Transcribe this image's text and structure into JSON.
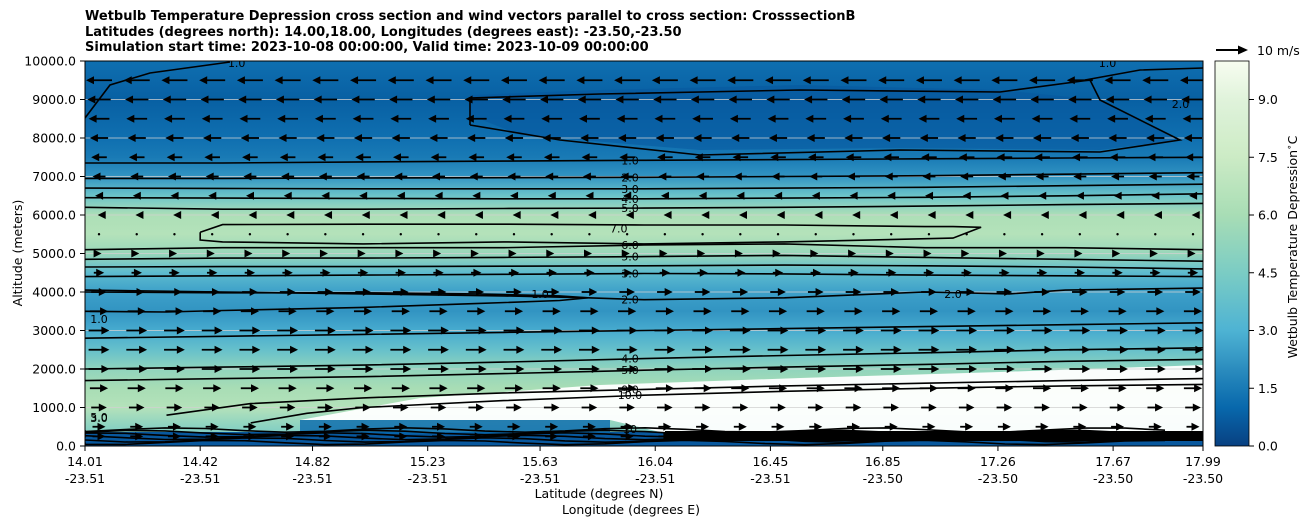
{
  "header": {
    "line1": "Wetbulb Temperature Depression cross section and wind vectors parallel to cross section: CrosssectionB",
    "line2": "Latitudes (degrees north): 14.00,18.00, Longitudes (degrees east): -23.50,-23.50",
    "line3": "Simulation start time: 2023-10-08 00:00:00, Valid time: 2023-10-09 00:00:00"
  },
  "chart_data": {
    "type": "heatmap",
    "ylabel": "Altitude (meters)",
    "xlabel": "Latitude (degrees N)",
    "xlabel2": "Longitude (degrees E)",
    "colorbar_label": "Wetbulb Temperature Depression $^\\circ$C",
    "quiver_key": "10 m/s",
    "ylim": [
      0,
      10000
    ],
    "y_ticks": [
      "0.0",
      "1000.0",
      "2000.0",
      "3000.0",
      "4000.0",
      "5000.0",
      "6000.0",
      "7000.0",
      "8000.0",
      "9000.0",
      "10000.0"
    ],
    "x_ticks": [
      {
        "lat": "14.01",
        "lon": "-23.51"
      },
      {
        "lat": "14.42",
        "lon": "-23.51"
      },
      {
        "lat": "14.82",
        "lon": "-23.51"
      },
      {
        "lat": "15.23",
        "lon": "-23.51"
      },
      {
        "lat": "15.63",
        "lon": "-23.51"
      },
      {
        "lat": "16.04",
        "lon": "-23.51"
      },
      {
        "lat": "16.45",
        "lon": "-23.51"
      },
      {
        "lat": "16.85",
        "lon": "-23.50"
      },
      {
        "lat": "17.26",
        "lon": "-23.50"
      },
      {
        "lat": "17.67",
        "lon": "-23.50"
      },
      {
        "lat": "17.99",
        "lon": "-23.50"
      }
    ],
    "colorbar_ticks": [
      "0.0",
      "1.5",
      "3.0",
      "4.5",
      "6.0",
      "7.5",
      "9.0"
    ],
    "colorbar_range": [
      0,
      10
    ],
    "grid_horizontal": true,
    "depression_profile": [
      {
        "z": 0,
        "v": 2.5
      },
      {
        "z": 300,
        "v": 4.5
      },
      {
        "z": 1000,
        "v": 6.5
      },
      {
        "z": 1500,
        "v": 6.0
      },
      {
        "z": 2000,
        "v": 5.2
      },
      {
        "z": 2500,
        "v": 3.8
      },
      {
        "z": 3000,
        "v": 2.8
      },
      {
        "z": 3500,
        "v": 2.2
      },
      {
        "z": 4000,
        "v": 2.5
      },
      {
        "z": 4500,
        "v": 3.5
      },
      {
        "z": 5000,
        "v": 5.5
      },
      {
        "z": 5500,
        "v": 6.5
      },
      {
        "z": 6000,
        "v": 6.2
      },
      {
        "z": 6500,
        "v": 4.0
      },
      {
        "z": 7000,
        "v": 2.2
      },
      {
        "z": 7500,
        "v": 1.5
      },
      {
        "z": 8000,
        "v": 1.2
      },
      {
        "z": 9000,
        "v": 0.8
      },
      {
        "z": 10000,
        "v": 1.2
      }
    ],
    "contour_labels": [
      {
        "text": "1.0",
        "x": 15.95,
        "z": 7420
      },
      {
        "text": "2.0",
        "x": 15.95,
        "z": 6980
      },
      {
        "text": "3.0",
        "x": 15.95,
        "z": 6680
      },
      {
        "text": "4.0",
        "x": 15.95,
        "z": 6420
      },
      {
        "text": "5.0",
        "x": 15.95,
        "z": 6180
      },
      {
        "text": "6.0",
        "x": 15.95,
        "z": 5220
      },
      {
        "text": "5.0",
        "x": 15.95,
        "z": 4920
      },
      {
        "text": "3.0",
        "x": 15.95,
        "z": 4480
      },
      {
        "text": "2.0",
        "x": 15.95,
        "z": 3800
      },
      {
        "text": "1.0",
        "x": 15.63,
        "z": 3950
      },
      {
        "text": "2.0",
        "x": 17.1,
        "z": 3950
      },
      {
        "text": "4.0",
        "x": 15.95,
        "z": 2270
      },
      {
        "text": "5.0",
        "x": 15.95,
        "z": 1970
      },
      {
        "text": "9.0",
        "x": 15.95,
        "z": 1470
      },
      {
        "text": "10.0",
        "x": 15.95,
        "z": 1320
      },
      {
        "text": "3.0",
        "x": 14.06,
        "z": 730
      },
      {
        "text": "5.0",
        "x": 14.06,
        "z": 750
      },
      {
        "text": "1.0",
        "x": 14.06,
        "z": 3300
      },
      {
        "text": "7.0",
        "x": 15.91,
        "z": 5650
      },
      {
        "text": "10",
        "x": 15.95,
        "z": 440
      },
      {
        "text": "2.0",
        "x": 17.91,
        "z": 8880
      },
      {
        "text": "1.0",
        "x": 14.55,
        "z": 9950
      },
      {
        "text": "1.0",
        "x": 17.65,
        "z": 9950
      }
    ],
    "contour_lines": [
      {
        "value": 1.0,
        "x": [
          14.01,
          14.5,
          15.0,
          15.5,
          16.0,
          16.5,
          17.0,
          17.5,
          17.99
        ],
        "z": [
          7350,
          7350,
          7380,
          7400,
          7420,
          7440,
          7460,
          7480,
          7500
        ]
      },
      {
        "value": 2.0,
        "x": [
          14.01,
          14.5,
          15.0,
          15.5,
          16.0,
          16.5,
          17.0,
          17.5,
          17.99
        ],
        "z": [
          6950,
          6950,
          6960,
          6970,
          6980,
          7000,
          7020,
          7060,
          7100
        ]
      },
      {
        "value": 3.0,
        "x": [
          14.01,
          14.5,
          15.0,
          15.5,
          16.0,
          16.5,
          17.0,
          17.5,
          17.99
        ],
        "z": [
          6700,
          6690,
          6680,
          6680,
          6680,
          6700,
          6720,
          6760,
          6800
        ]
      },
      {
        "value": 4.0,
        "x": [
          14.01,
          14.5,
          15.0,
          15.5,
          16.0,
          16.5,
          17.0,
          17.5,
          17.99
        ],
        "z": [
          6450,
          6440,
          6430,
          6420,
          6420,
          6440,
          6460,
          6500,
          6550
        ]
      },
      {
        "value": 5.0,
        "x": [
          14.01,
          14.5,
          15.0,
          15.5,
          16.0,
          16.5,
          17.0,
          17.5,
          17.99
        ],
        "z": [
          6200,
          6150,
          6150,
          6170,
          6180,
          6200,
          6230,
          6270,
          6300
        ]
      },
      {
        "value": 7.0,
        "x": [
          14.42,
          14.5,
          15.0,
          15.5,
          16.0,
          16.5,
          17.0,
          17.1,
          17.2,
          17.1,
          16.5,
          16.0,
          15.5,
          15.0,
          14.5,
          14.42,
          14.42
        ],
        "z": [
          5550,
          5750,
          5760,
          5760,
          5740,
          5740,
          5700,
          5700,
          5680,
          5400,
          5300,
          5250,
          5300,
          5250,
          5300,
          5350,
          5550
        ]
      },
      {
        "value": 6.0,
        "x": [
          14.01,
          14.5,
          15.0,
          15.5,
          16.0,
          16.5,
          17.0,
          17.5,
          17.99
        ],
        "z": [
          5100,
          5150,
          5150,
          5150,
          5220,
          5250,
          5150,
          5150,
          5100
        ]
      },
      {
        "value": 5.0,
        "x": [
          14.01,
          14.5,
          15.0,
          15.5,
          16.0,
          16.5,
          17.0,
          17.5,
          17.99
        ],
        "z": [
          4850,
          4880,
          4880,
          4900,
          4920,
          4950,
          4900,
          4850,
          4800
        ]
      },
      {
        "value": 4.0,
        "x": [
          14.01,
          14.5,
          15.0,
          15.5,
          16.0,
          16.5,
          17.0,
          17.5,
          17.99
        ],
        "z": [
          4650,
          4660,
          4660,
          4670,
          4680,
          4700,
          4680,
          4650,
          4600
        ]
      },
      {
        "value": 3.0,
        "x": [
          14.01,
          14.5,
          15.0,
          15.5,
          16.0,
          16.5,
          17.0,
          17.5,
          17.99
        ],
        "z": [
          4400,
          4420,
          4440,
          4460,
          4480,
          4470,
          4440,
          4420,
          4400
        ]
      },
      {
        "value": 2.0,
        "x": [
          14.01,
          14.5,
          15.0,
          15.5,
          15.8,
          16.0,
          16.5,
          17.0,
          17.3,
          17.5,
          17.99
        ],
        "z": [
          4050,
          4000,
          3950,
          3900,
          3850,
          3800,
          3850,
          4000,
          3950,
          4050,
          4100
        ]
      },
      {
        "value": 1.0,
        "x": [
          14.01,
          14.3,
          14.5,
          15.0,
          15.4,
          15.7,
          15.8,
          15.7,
          15.4,
          15.0,
          14.5,
          14.01
        ],
        "z": [
          3500,
          3480,
          3520,
          3600,
          3700,
          3780,
          3850,
          3900,
          3950,
          3980,
          3980,
          4000
        ]
      },
      {
        "value": 3.0,
        "x": [
          14.01,
          14.5,
          15.0,
          15.5,
          16.0,
          16.5,
          17.0,
          17.5,
          17.99
        ],
        "z": [
          2800,
          2850,
          2900,
          2950,
          3000,
          3050,
          3100,
          3150,
          3200
        ]
      },
      {
        "value": 4.0,
        "x": [
          14.01,
          14.5,
          15.0,
          15.5,
          16.0,
          16.5,
          17.0,
          17.5,
          17.99
        ],
        "z": [
          2000,
          2050,
          2100,
          2180,
          2270,
          2350,
          2420,
          2500,
          2550
        ]
      },
      {
        "value": 5.0,
        "x": [
          14.01,
          14.5,
          15.0,
          15.5,
          16.0,
          16.5,
          17.0,
          17.5,
          17.99
        ],
        "z": [
          1700,
          1750,
          1800,
          1880,
          1970,
          2050,
          2120,
          2200,
          2250
        ]
      },
      {
        "value": 9.0,
        "x": [
          14.3,
          14.6,
          15.0,
          15.5,
          16.0,
          16.5,
          17.0,
          17.5,
          17.99
        ],
        "z": [
          800,
          1100,
          1250,
          1380,
          1470,
          1560,
          1630,
          1700,
          1750
        ]
      },
      {
        "value": 10.0,
        "x": [
          14.6,
          14.8,
          15.0,
          15.5,
          16.0,
          16.5,
          17.0,
          17.5,
          17.99
        ],
        "z": [
          600,
          850,
          1000,
          1180,
          1320,
          1420,
          1500,
          1560,
          1600
        ]
      }
    ],
    "wind_u_by_level": [
      {
        "z": 250,
        "u": 5
      },
      {
        "z": 500,
        "u": 5
      },
      {
        "z": 1000,
        "u": 6
      },
      {
        "z": 1500,
        "u": 7
      },
      {
        "z": 2000,
        "u": 8
      },
      {
        "z": 2500,
        "u": 8
      },
      {
        "z": 3000,
        "u": 8
      },
      {
        "z": 3500,
        "u": 7
      },
      {
        "z": 4000,
        "u": 6
      },
      {
        "z": 4500,
        "u": 4
      },
      {
        "z": 5000,
        "u": 2
      },
      {
        "z": 5500,
        "u": 0
      },
      {
        "z": 6000,
        "u": -1
      },
      {
        "z": 6500,
        "u": -3
      },
      {
        "z": 7000,
        "u": -5
      },
      {
        "z": 7500,
        "u": -6
      },
      {
        "z": 8000,
        "u": -7
      },
      {
        "z": 8500,
        "u": -8
      },
      {
        "z": 9000,
        "u": -9
      },
      {
        "z": 9500,
        "u": -10
      }
    ]
  }
}
